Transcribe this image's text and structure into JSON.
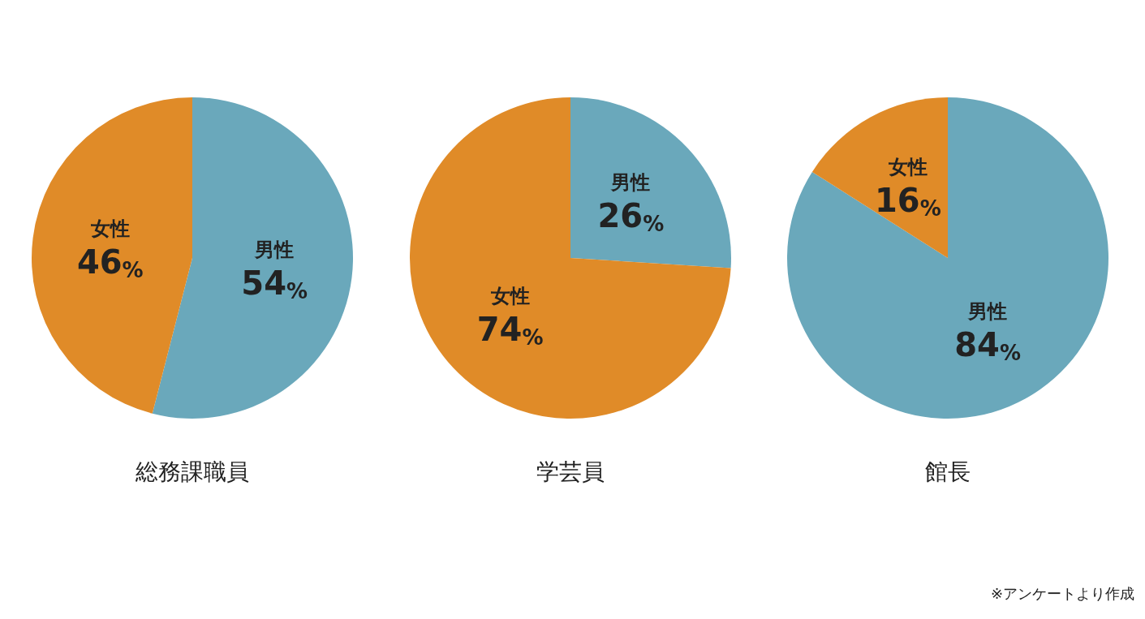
{
  "chart_data": [
    {
      "type": "pie",
      "title": "総務課職員",
      "categories": [
        "男性",
        "女性"
      ],
      "values": [
        54,
        46
      ],
      "colors": [
        "#6aa8bb",
        "#e08b28"
      ],
      "value_labels": [
        "54%",
        "46%"
      ]
    },
    {
      "type": "pie",
      "title": "学芸員",
      "categories": [
        "男性",
        "女性"
      ],
      "values": [
        26,
        74
      ],
      "colors": [
        "#6aa8bb",
        "#e08b28"
      ],
      "value_labels": [
        "26%",
        "74%"
      ]
    },
    {
      "type": "pie",
      "title": "館長",
      "categories": [
        "男性",
        "女性"
      ],
      "values": [
        84,
        16
      ],
      "colors": [
        "#6aa8bb",
        "#e08b28"
      ],
      "value_labels": [
        "84%",
        "16%"
      ],
      "annotations": [
        "※アンケートより作成"
      ]
    }
  ]
}
